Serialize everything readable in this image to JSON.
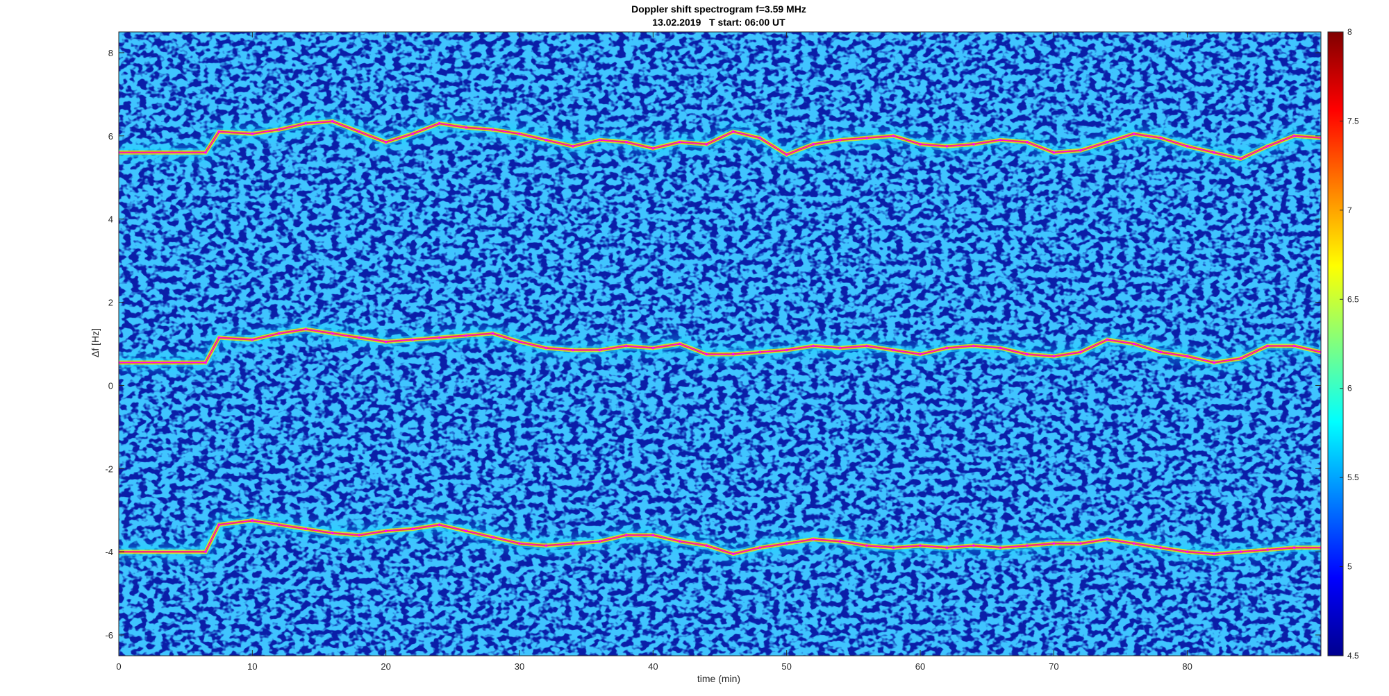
{
  "chart_data": {
    "type": "heatmap",
    "title": "Doppler shift spectrogram f=3.59 MHz",
    "subtitle": "13.02.2019   T start: 06:00 UT",
    "xlabel": "time (min)",
    "ylabel": "Δf [Hz]",
    "xlim": [
      0,
      90
    ],
    "ylim": [
      -6.5,
      8.5
    ],
    "xticks": [
      0,
      10,
      20,
      30,
      40,
      50,
      60,
      70,
      80
    ],
    "yticks": [
      -6,
      -4,
      -2,
      0,
      2,
      4,
      6,
      8
    ],
    "colorbar": {
      "range": [
        4.5,
        8
      ],
      "ticks": [
        4.5,
        5,
        5.5,
        6,
        6.5,
        7,
        7.5,
        8
      ],
      "colormap": "jet"
    },
    "background_color": "#0a1ea8",
    "grid": false,
    "series": [
      {
        "color": "#ff00ff",
        "x": [
          0,
          6.5,
          7.5,
          10,
          12,
          14,
          16,
          18,
          20,
          22,
          24,
          26,
          28,
          30,
          32,
          34,
          36,
          38,
          40,
          42,
          44,
          46,
          48,
          50,
          52,
          54,
          56,
          58,
          60,
          62,
          64,
          66,
          68,
          70,
          72,
          74,
          76,
          78,
          80,
          82,
          84,
          86,
          88,
          90
        ],
        "y": [
          5.6,
          5.6,
          6.1,
          6.05,
          6.15,
          6.3,
          6.35,
          6.1,
          5.85,
          6.05,
          6.3,
          6.2,
          6.15,
          6.05,
          5.9,
          5.75,
          5.9,
          5.85,
          5.7,
          5.85,
          5.8,
          6.1,
          5.95,
          5.55,
          5.8,
          5.9,
          5.95,
          6.0,
          5.8,
          5.75,
          5.8,
          5.9,
          5.85,
          5.6,
          5.65,
          5.85,
          6.05,
          5.95,
          5.75,
          5.6,
          5.45,
          5.75,
          6.0,
          5.95
        ]
      },
      {
        "color": "#ff00ff",
        "x": [
          0,
          6.5,
          7.5,
          10,
          12,
          14,
          16,
          18,
          20,
          22,
          24,
          26,
          28,
          30,
          32,
          34,
          36,
          38,
          40,
          42,
          44,
          46,
          48,
          50,
          52,
          54,
          56,
          58,
          60,
          62,
          64,
          66,
          68,
          70,
          72,
          74,
          76,
          78,
          80,
          82,
          84,
          86,
          88,
          90
        ],
        "y": [
          0.55,
          0.55,
          1.15,
          1.1,
          1.25,
          1.35,
          1.25,
          1.15,
          1.05,
          1.1,
          1.15,
          1.2,
          1.25,
          1.05,
          0.9,
          0.85,
          0.85,
          0.95,
          0.9,
          1.0,
          0.75,
          0.75,
          0.8,
          0.85,
          0.95,
          0.9,
          0.95,
          0.85,
          0.75,
          0.9,
          0.95,
          0.9,
          0.75,
          0.7,
          0.8,
          1.1,
          1.0,
          0.8,
          0.7,
          0.55,
          0.65,
          0.95,
          0.95,
          0.8
        ]
      },
      {
        "color": "#ff00ff",
        "x": [
          0,
          6.5,
          7.5,
          10,
          12,
          14,
          16,
          18,
          20,
          22,
          24,
          26,
          28,
          30,
          32,
          34,
          36,
          38,
          40,
          42,
          44,
          46,
          48,
          50,
          52,
          54,
          56,
          58,
          60,
          62,
          64,
          66,
          68,
          70,
          72,
          74,
          76,
          78,
          80,
          82,
          84,
          86,
          88,
          90
        ],
        "y": [
          -4.0,
          -4.0,
          -3.35,
          -3.25,
          -3.35,
          -3.45,
          -3.55,
          -3.6,
          -3.5,
          -3.45,
          -3.35,
          -3.5,
          -3.65,
          -3.8,
          -3.85,
          -3.8,
          -3.75,
          -3.6,
          -3.6,
          -3.75,
          -3.85,
          -4.05,
          -3.9,
          -3.8,
          -3.7,
          -3.75,
          -3.85,
          -3.9,
          -3.85,
          -3.9,
          -3.85,
          -3.9,
          -3.85,
          -3.8,
          -3.8,
          -3.7,
          -3.8,
          -3.9,
          -4.0,
          -4.05,
          -4.0,
          -3.95,
          -3.9,
          -3.9
        ]
      }
    ]
  }
}
